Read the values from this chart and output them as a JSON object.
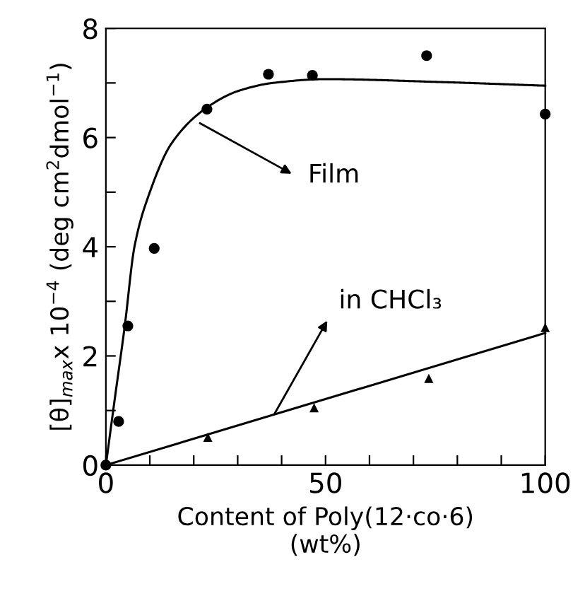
{
  "chart_data": {
    "type": "scatter",
    "xlabel": "Content of Poly(12·co·6)\n(wt%)",
    "ylabel": "[θ]$_{max}$x 10$^{−4}$ (deg cm$^{2}$dmol$^{−1}$)",
    "xlim": [
      0,
      100
    ],
    "ylim": [
      0,
      8
    ],
    "xticks": [
      0,
      {
        "value": 10,
        "label": null
      },
      {
        "value": 20,
        "label": null
      },
      {
        "value": 30,
        "label": null
      },
      {
        "value": 40,
        "label": null
      },
      50,
      {
        "value": 60,
        "label": null
      },
      {
        "value": 70,
        "label": null
      },
      {
        "value": 80,
        "label": null
      },
      {
        "value": 90,
        "label": null
      },
      100
    ],
    "yticks": [
      0,
      {
        "value": 1,
        "label": null
      },
      2,
      {
        "value": 3,
        "label": null
      },
      4,
      {
        "value": 5,
        "label": null
      },
      6,
      {
        "value": 7,
        "label": null
      },
      8
    ],
    "grid": false,
    "legend": false,
    "series": [
      {
        "marker": "circle",
        "color": "#000000",
        "x": [
          0,
          2.9,
          5,
          11,
          23,
          37,
          47,
          73,
          100
        ],
        "values": [
          0,
          0.8,
          2.55,
          3.97,
          6.52,
          7.16,
          7.14,
          7.5,
          6.43
        ]
      },
      {
        "type": "line",
        "marker": "none",
        "line_style": "solid",
        "color": "#000000",
        "x": [
          0,
          2,
          4.3,
          6.5,
          10,
          15,
          23,
          30,
          38,
          50,
          75,
          100
        ],
        "values": [
          0,
          1.2,
          2.55,
          4.0,
          5.0,
          5.9,
          6.55,
          6.85,
          7.0,
          7.07,
          7.02,
          6.95
        ]
      },
      {
        "marker": "triangle",
        "color": "#000000",
        "x": [
          23.2,
          47.4,
          73.5,
          100
        ],
        "values": [
          0.51,
          1.05,
          1.59,
          2.52
        ]
      },
      {
        "type": "line",
        "marker": "none",
        "line_style": "solid",
        "color": "#000000",
        "x": [
          0,
          100
        ],
        "values": [
          0,
          2.42
        ]
      }
    ],
    "annotations": [
      "Film",
      "in CHCl₃"
    ]
  }
}
